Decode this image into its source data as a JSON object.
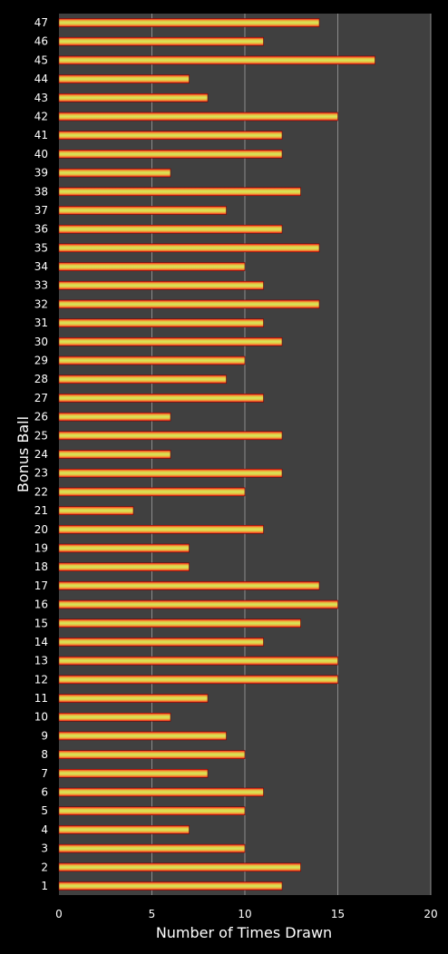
{
  "chart_data": {
    "type": "bar",
    "orientation": "horizontal",
    "title": "",
    "xlabel": "Number of Times Drawn",
    "ylabel": "Bonus Ball",
    "xlim": [
      0,
      20
    ],
    "xticks": [
      0,
      5,
      10,
      15,
      20
    ],
    "grid": true,
    "categories": [
      "1",
      "2",
      "3",
      "4",
      "5",
      "6",
      "7",
      "8",
      "9",
      "10",
      "11",
      "12",
      "13",
      "14",
      "15",
      "16",
      "17",
      "18",
      "19",
      "20",
      "21",
      "22",
      "23",
      "24",
      "25",
      "26",
      "27",
      "28",
      "29",
      "30",
      "31",
      "32",
      "33",
      "34",
      "35",
      "36",
      "37",
      "38",
      "39",
      "40",
      "41",
      "42",
      "43",
      "44",
      "45",
      "46",
      "47"
    ],
    "values": [
      12,
      13,
      10,
      7,
      10,
      11,
      8,
      10,
      9,
      6,
      8,
      15,
      15,
      11,
      13,
      15,
      14,
      7,
      7,
      11,
      4,
      10,
      12,
      6,
      12,
      6,
      11,
      9,
      10,
      12,
      11,
      14,
      11,
      10,
      14,
      12,
      9,
      13,
      6,
      12,
      12,
      15,
      8,
      7,
      17,
      11,
      14
    ],
    "colors": {
      "background": "#000000",
      "plot_area": "#404040",
      "grid": "#8c8c8c",
      "bar_edge": "#ff1a1a",
      "bar_center": "#d4e85a",
      "text": "#ffffff"
    }
  }
}
